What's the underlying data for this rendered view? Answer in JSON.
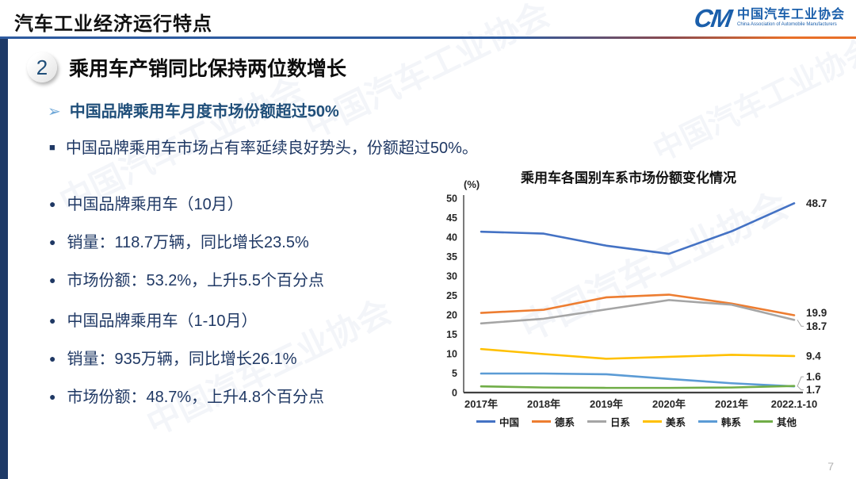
{
  "header": {
    "title": "汽车工业经济运行特点",
    "logo": {
      "acronym": "CM",
      "org_cn": "中国汽车工业协会",
      "org_en": "China Association of Automobile Manufacturers"
    }
  },
  "section": {
    "number": "2",
    "heading": "乘用车产销同比保持两位数增长",
    "key_point": "中国品牌乘用车月度市场份额超过50%",
    "summary": "中国品牌乘用车市场占有率延续良好势头，份额超过50%。"
  },
  "bullet_groups": [
    {
      "items": [
        "中国品牌乘用车（10月）",
        "销量：118.7万辆，同比增长23.5%",
        "市场份额：53.2%，上升5.5个百分点"
      ]
    },
    {
      "items": [
        "中国品牌乘用车（1-10月）",
        "销量：935万辆，同比增长26.1%",
        "市场份额：48.7%，上升4.8个百分点"
      ]
    }
  ],
  "chart_data": {
    "type": "line",
    "title": "乘用车各国别车系市场份额变化情况",
    "y_unit_label": "(%)",
    "categories": [
      "2017年",
      "2018年",
      "2019年",
      "2020年",
      "2021年",
      "2022.1-10"
    ],
    "series": [
      {
        "name": "中国",
        "color": "#4472C4",
        "values": [
          41.4,
          40.9,
          37.8,
          35.7,
          41.5,
          48.7
        ],
        "end_label": "48.7"
      },
      {
        "name": "德系",
        "color": "#ED7D31",
        "values": [
          20.5,
          21.3,
          24.5,
          25.2,
          22.9,
          19.9
        ],
        "end_label": "19.9"
      },
      {
        "name": "日系",
        "color": "#A5A5A5",
        "values": [
          17.8,
          19.0,
          21.4,
          23.8,
          22.6,
          18.7
        ],
        "end_label": "18.7"
      },
      {
        "name": "美系",
        "color": "#FFC000",
        "values": [
          11.2,
          9.9,
          8.7,
          9.2,
          9.7,
          9.4
        ],
        "end_label": "9.4"
      },
      {
        "name": "韩系",
        "color": "#5B9BD5",
        "values": [
          4.9,
          4.9,
          4.7,
          3.5,
          2.4,
          1.6
        ],
        "end_label": "1.6"
      },
      {
        "name": "其他",
        "color": "#70AD47",
        "values": [
          1.6,
          1.3,
          1.2,
          1.2,
          1.3,
          1.7
        ],
        "end_label": "1.7"
      }
    ],
    "ylim": [
      0,
      50
    ],
    "y_tick_step": 5,
    "grid": false,
    "legend_position": "bottom",
    "end_label_dy": [
      0,
      -3,
      8,
      0,
      -12,
      5
    ]
  },
  "colors": {
    "accent_blue": "#1F4E79",
    "dark_navy": "#1F3864",
    "logo_blue": "#1B5FAB",
    "divider_blue": "#2E5B9F",
    "divider_orange": "#E87029"
  },
  "page_number": "7"
}
